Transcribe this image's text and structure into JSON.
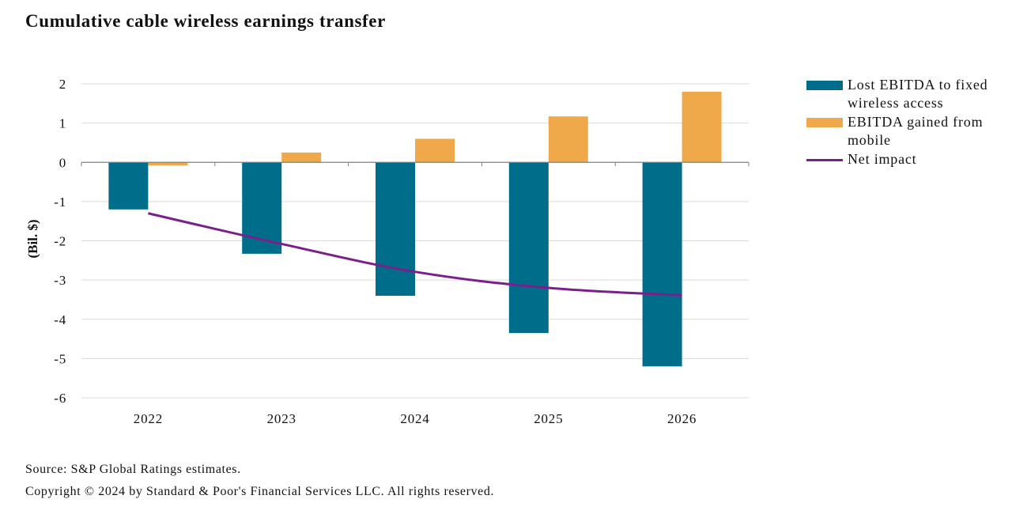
{
  "title": "Cumulative cable wireless earnings transfer",
  "source": "Source: S&P Global Ratings estimates.",
  "copyright": "Copyright © 2024 by Standard & Poor's Financial Services LLC. All rights reserved.",
  "colors": {
    "lost": "#006e8a",
    "gained": "#f0a94a",
    "net": "#7b1f8c",
    "grid": "#d9d9d9",
    "axis": "#808080"
  },
  "legend": [
    {
      "label": "Lost EBITDA to fixed wireless access",
      "kind": "bar",
      "color": "#006e8a"
    },
    {
      "label": "EBITDA gained from mobile",
      "kind": "bar",
      "color": "#f0a94a"
    },
    {
      "label": "Net impact",
      "kind": "line",
      "color": "#7b1f8c"
    }
  ],
  "chart_data": {
    "type": "bar",
    "title": "Cumulative cable wireless earnings transfer",
    "ylabel": "(Bil. $)",
    "xlabel": "",
    "categories": [
      "2022",
      "2023",
      "2024",
      "2025",
      "2026"
    ],
    "ylim": [
      -6,
      2
    ],
    "yticks": [
      2,
      1,
      0,
      -1,
      -2,
      -3,
      -4,
      -5,
      -6
    ],
    "grid": true,
    "legend_position": "right",
    "series": [
      {
        "name": "Lost EBITDA to fixed wireless access",
        "type": "bar",
        "values": [
          -1.2,
          -2.33,
          -3.4,
          -4.35,
          -5.2
        ]
      },
      {
        "name": "EBITDA gained from mobile",
        "type": "bar",
        "values": [
          -0.08,
          0.25,
          0.6,
          1.17,
          1.8
        ]
      },
      {
        "name": "Net impact",
        "type": "line",
        "values": [
          -1.3,
          -2.08,
          -2.79,
          -3.2,
          -3.39
        ]
      }
    ]
  }
}
